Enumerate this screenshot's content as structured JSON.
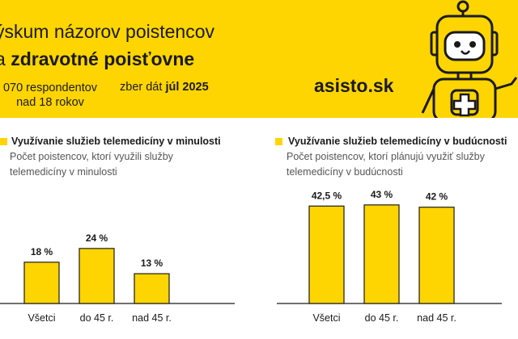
{
  "header": {
    "title_line1": "ýskum názorov poistencov",
    "title_line2_prefix": "a",
    "title_line2_bold": "zdravotné poisťovne",
    "respondents_line1": "070 respondentov",
    "respondents_line2": "nad 18 rokov",
    "collection_prefix": "zber dát",
    "collection_bold": "júl 2025",
    "brand": "asisto.sk",
    "mascot_icon": "robot-mascot-with-medical-cross-icon"
  },
  "colors": {
    "accent": "#FFD500",
    "bar": "#FFD500",
    "bar_outline": "#1a1a1a",
    "text": "#1a1a1a",
    "subtext": "#555555"
  },
  "chart_data": [
    {
      "type": "bar",
      "title": "Využívanie služieb telemedicíny v minulosti",
      "subtitle": "Počet poistencov, ktorí využili služby telemedicíny v minulosti",
      "categories": [
        "Všetci",
        "do 45 r.",
        "nad 45 r."
      ],
      "values": [
        18,
        24,
        13
      ],
      "value_labels": [
        "18 %",
        "24 %",
        "13 %"
      ],
      "ylim": [
        0,
        47
      ],
      "grid": false
    },
    {
      "type": "bar",
      "title": "Využívanie služieb telemedicíny v budúcnosti",
      "subtitle": "Počet poistencov, ktorí plánujú využiť služby telemedicíny v budúcnosti",
      "categories": [
        "Všetci",
        "do 45 r.",
        "nad 45 r."
      ],
      "values": [
        42.5,
        43,
        42
      ],
      "value_labels": [
        "42,5 %",
        "43 %",
        "42 %"
      ],
      "ylim": [
        0,
        47
      ],
      "grid": false
    }
  ]
}
